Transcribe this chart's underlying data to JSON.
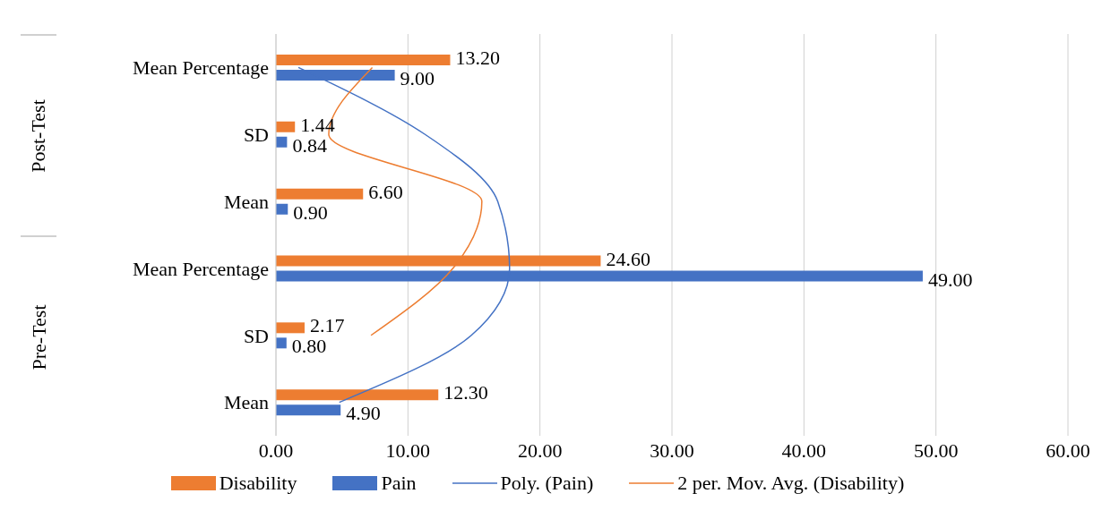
{
  "chart_data": {
    "type": "bar",
    "orientation": "horizontal",
    "categories": [
      "Mean Percentage",
      "SD",
      "Mean",
      "Mean Percentage",
      "SD",
      "Mean"
    ],
    "annotations": [
      "Post-Test",
      "Pre-Test"
    ],
    "series": [
      {
        "name": "Disability",
        "color": "#ed7d31",
        "values": [
          13.2,
          1.44,
          6.6,
          24.6,
          2.17,
          12.3
        ],
        "value_labels": [
          "13.20",
          "1.44",
          "6.60",
          "24.60",
          "2.17",
          "12.30"
        ]
      },
      {
        "name": "Pain",
        "color": "#4472c4",
        "values": [
          9,
          0.84,
          0.9,
          49,
          0.8,
          4.9
        ],
        "value_labels": [
          "9.00",
          "0.84",
          "0.90",
          "49.00",
          "0.80",
          "4.90"
        ]
      },
      {
        "name": "Poly. (Pain)",
        "type": "line",
        "color": "#4472c4",
        "values": [
          1.7,
          11.3,
          16.8,
          17.7,
          14.8,
          4.8
        ]
      },
      {
        "name": "2 per. Mov. Avg. (Disability)",
        "type": "line",
        "color": "#ed7d31",
        "values": [
          7.3,
          4.0,
          15.6,
          13.4,
          7.2,
          null
        ]
      }
    ],
    "xlim": [
      0,
      60
    ],
    "xticks": [
      {
        "value": 0,
        "label": "0.00"
      },
      {
        "value": 10,
        "label": "10.00"
      },
      {
        "value": 20,
        "label": "20.00"
      },
      {
        "value": 30,
        "label": "30.00"
      },
      {
        "value": 40,
        "label": "40.00"
      },
      {
        "value": 50,
        "label": "50.00"
      },
      {
        "value": 60,
        "label": "60.00"
      }
    ],
    "grid": "x",
    "legend": "bottom",
    "marker": "none"
  }
}
